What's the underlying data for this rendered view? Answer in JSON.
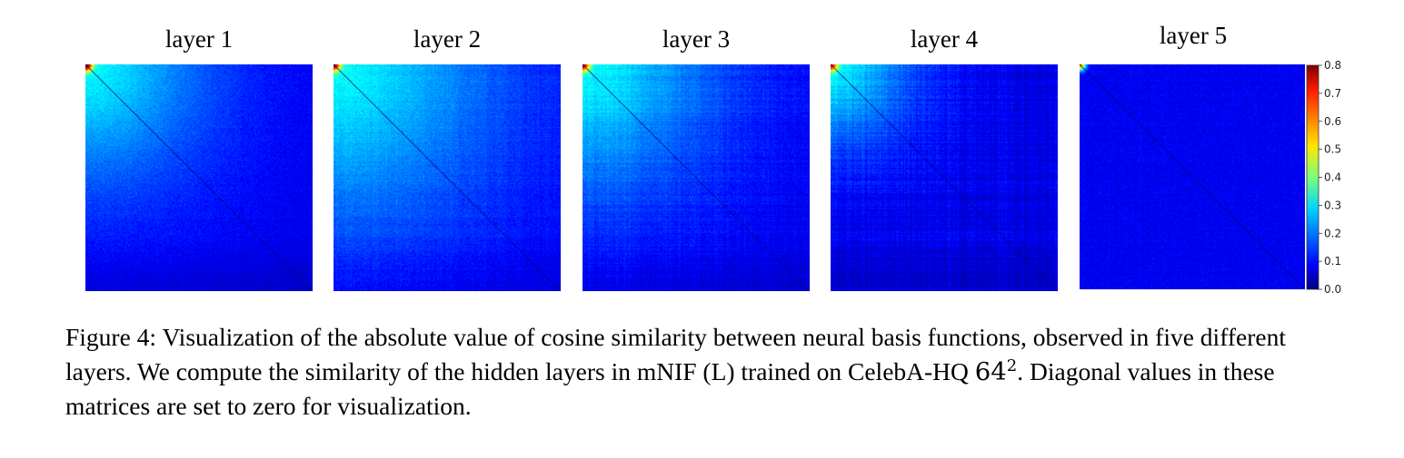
{
  "figure": {
    "panels": [
      {
        "title": "layer 1",
        "corner_strength": 0.82,
        "corner_decay": 0.55,
        "lines": 0.1
      },
      {
        "title": "layer 2",
        "corner_strength": 0.72,
        "corner_decay": 0.75,
        "lines": 0.25
      },
      {
        "title": "layer 3",
        "corner_strength": 0.7,
        "corner_decay": 0.6,
        "lines": 0.35
      },
      {
        "title": "layer 4",
        "corner_strength": 0.62,
        "corner_decay": 0.35,
        "lines": 0.55
      },
      {
        "title": "layer 5",
        "corner_strength": 0.55,
        "corner_decay": 0.04,
        "lines": 0.15
      }
    ],
    "colormap": "jet",
    "colorbar": {
      "min": 0.0,
      "max": 0.8,
      "ticks": [
        "0.8",
        "0.7",
        "0.6",
        "0.5",
        "0.4",
        "0.3",
        "0.2",
        "0.1",
        "0.0"
      ]
    }
  },
  "caption": {
    "label": "Figure 4:",
    "text_before_math": "Visualization of the absolute value of cosine similarity between neural basis functions, observed in five different layers. We compute the similarity of the hidden layers in mNIF (L) trained on CelebA-HQ",
    "math_base": "64",
    "math_sup": "2",
    "text_after_math": ". Diagonal values in these matrices are set to zero for visualization."
  }
}
